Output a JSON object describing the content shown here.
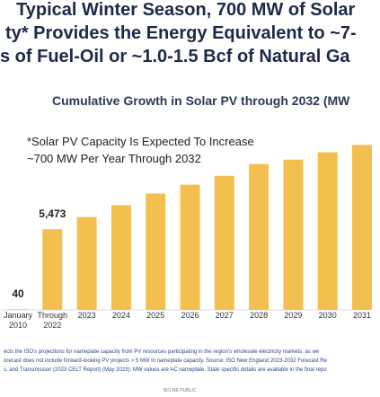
{
  "slide": {
    "title_lines": [
      "Typical Winter Season, 700 MW of Solar",
      "ty* Provides the Energy Equivalent to ~7-",
      "s of Fuel-Oil or ~1.0-1.5 Bcf of Natural Ga"
    ],
    "footnotes": [
      "ects the ISO's projections for nameplate capacity from PV resources participating in the region's wholesale electricity markets, as we",
      "orecast does not include forward-looking PV projects > 5 MW in nameplate capacity. Source: ISO New England 2023-2032 Forecast Re",
      "s, and Transmission (2023 CELT Report) (May 2023); MW values are AC nameplate. State specific details are available in the final repo"
    ],
    "footer": "ISO-NE PUBLIC"
  },
  "chart_data": {
    "type": "bar",
    "title": "Cumulative Growth in Solar PV through 2032 (MW",
    "annotation": [
      "*Solar PV Capacity Is Expected To Increase",
      "~700 MW Per Year Through 2032"
    ],
    "categories": [
      "January 2010",
      "Through 2022",
      "2023",
      "2024",
      "2025",
      "2026",
      "2027",
      "2028",
      "2029",
      "2030",
      "2031"
    ],
    "values": [
      40,
      5473,
      6300,
      7100,
      7900,
      8500,
      9100,
      9900,
      10200,
      10700,
      11200
    ],
    "value_labels": [
      "40",
      "5,473",
      null,
      null,
      null,
      null,
      null,
      null,
      null,
      null,
      null
    ],
    "color": "#f3c04f"
  }
}
